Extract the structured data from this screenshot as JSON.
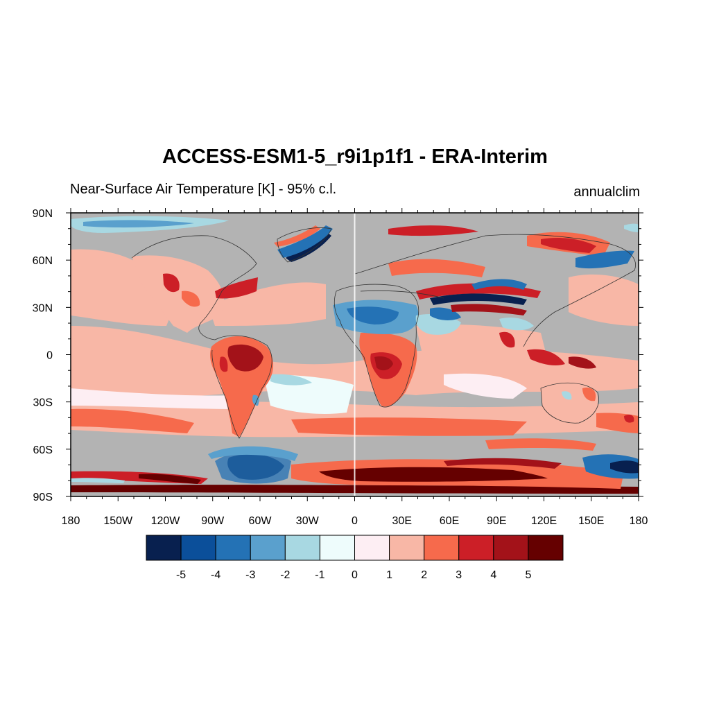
{
  "title": "ACCESS-ESM1-5_r9i1p1f1 - ERA-Interim",
  "subtitle_left": "Near-Surface Air Temperature [K] - 95% c.l.",
  "subtitle_right": "annualclim",
  "map": {
    "projection": "cylindrical-equidistant",
    "lon_range": [
      -180,
      180
    ],
    "lat_range": [
      -90,
      90
    ],
    "lon_ticks": [
      {
        "value": -180,
        "label": "180"
      },
      {
        "value": -150,
        "label": "150W"
      },
      {
        "value": -120,
        "label": "120W"
      },
      {
        "value": -90,
        "label": "90W"
      },
      {
        "value": -60,
        "label": "60W"
      },
      {
        "value": -30,
        "label": "30W"
      },
      {
        "value": 0,
        "label": "0"
      },
      {
        "value": 30,
        "label": "30E"
      },
      {
        "value": 60,
        "label": "60E"
      },
      {
        "value": 90,
        "label": "90E"
      },
      {
        "value": 120,
        "label": "120E"
      },
      {
        "value": 150,
        "label": "150E"
      },
      {
        "value": 180,
        "label": "180"
      }
    ],
    "lat_ticks": [
      {
        "value": 90,
        "label": "90N"
      },
      {
        "value": 60,
        "label": "60N"
      },
      {
        "value": 30,
        "label": "30N"
      },
      {
        "value": 0,
        "label": "0"
      },
      {
        "value": -30,
        "label": "30S"
      },
      {
        "value": -60,
        "label": "60S"
      },
      {
        "value": -90,
        "label": "90S"
      }
    ],
    "insignificant_color": "#b3b3b3",
    "coastline_color": "#333333"
  },
  "colorbar": {
    "colors": [
      "#08204f",
      "#0b4f9a",
      "#2472b5",
      "#5aa0cd",
      "#a8d8e2",
      "#eefcfc",
      "#fdeef3",
      "#f8b7a6",
      "#f66a4c",
      "#cc1f27",
      "#a31219",
      "#650000"
    ],
    "labels": [
      "-5",
      "-4",
      "-3",
      "-2",
      "-1",
      "0",
      "1",
      "2",
      "3",
      "4",
      "5"
    ]
  },
  "chart_data": {
    "type": "heatmap",
    "title": "ACCESS-ESM1-5_r9i1p1f1 - ERA-Interim",
    "variable": "Near-Surface Air Temperature [K] - 95% c.l.",
    "period": "annualclim",
    "x_range": [
      -180,
      180
    ],
    "y_range": [
      -90,
      90
    ],
    "color_levels": [
      -5,
      -4,
      -3,
      -2,
      -1,
      0,
      1,
      2,
      3,
      4,
      5
    ],
    "regions": [
      {
        "lon": [
          -180,
          180
        ],
        "lat": [
          -30,
          0
        ],
        "value": 1.5
      },
      {
        "lon": [
          -180,
          180
        ],
        "lat": [
          0,
          60
        ],
        "value": 1.5
      },
      {
        "lon": [
          -180,
          180
        ],
        "lat": [
          -60,
          -40
        ],
        "value": 2.5
      },
      {
        "lon": [
          -180,
          180
        ],
        "lat": [
          -85,
          -65
        ],
        "value": 4.5
      },
      {
        "lon": [
          -120,
          -60
        ],
        "lat": [
          -80,
          -65
        ],
        "value": -4
      },
      {
        "lon": [
          -40,
          -20
        ],
        "lat": [
          60,
          80
        ],
        "value": -4
      },
      {
        "lon": [
          -75,
          -40
        ],
        "lat": [
          -20,
          5
        ],
        "value": 4.5
      },
      {
        "lon": [
          10,
          35
        ],
        "lat": [
          -20,
          10
        ],
        "value": 3.5
      },
      {
        "lon": [
          -20,
          40
        ],
        "lat": [
          15,
          35
        ],
        "value": -2.5
      },
      {
        "lon": [
          40,
          100
        ],
        "lat": [
          25,
          45
        ],
        "value": 3.5
      },
      {
        "lon": [
          90,
          130
        ],
        "lat": [
          50,
          70
        ],
        "value": -3
      },
      {
        "lon": [
          100,
          150
        ],
        "lat": [
          -10,
          5
        ],
        "value": 4
      },
      {
        "lon": [
          -50,
          0
        ],
        "lat": [
          -40,
          -15
        ],
        "value": -0.5
      }
    ]
  }
}
